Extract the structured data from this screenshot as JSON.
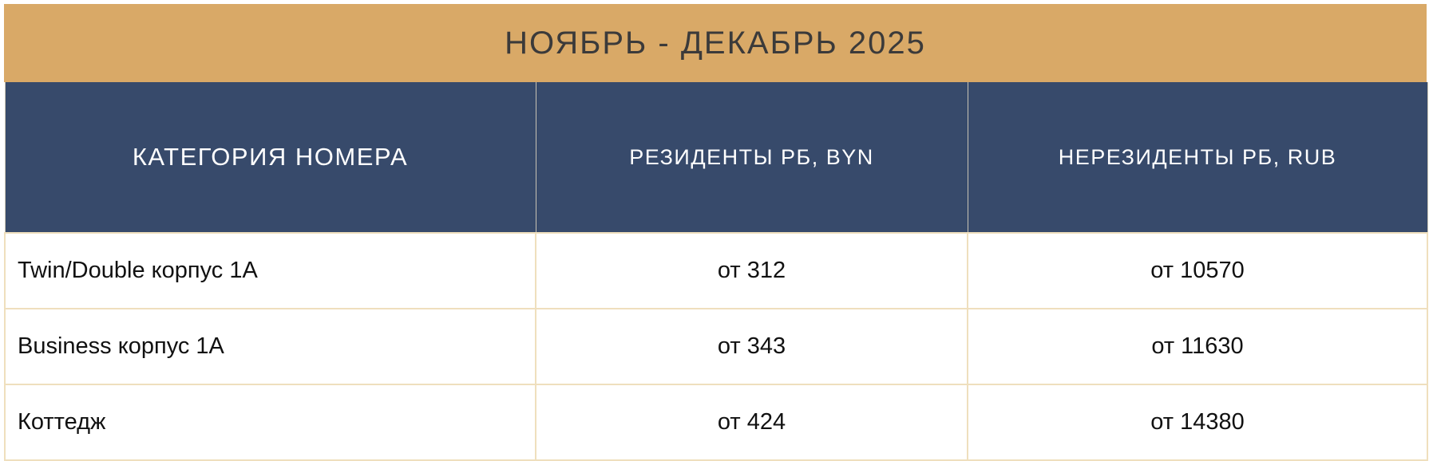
{
  "title": "НОЯБРЬ - ДЕКАБРЬ 2025",
  "columns": [
    "КАТЕГОРИЯ НОМЕРА",
    "РЕЗИДЕНТЫ РБ, BYN",
    "НЕРЕЗИДЕНТЫ РБ, RUB"
  ],
  "rows": [
    {
      "category": "Twin/Double корпус 1А",
      "byn": "от 312",
      "rub": "от 10570"
    },
    {
      "category": "Business корпус 1А",
      "byn": "от 343",
      "rub": "от 11630"
    },
    {
      "category": "Коттедж",
      "byn": "от 424",
      "rub": "от 14380"
    }
  ],
  "colors": {
    "title_bg": "#d9a967",
    "header_bg": "#374a6b",
    "border": "#efdfbd"
  }
}
